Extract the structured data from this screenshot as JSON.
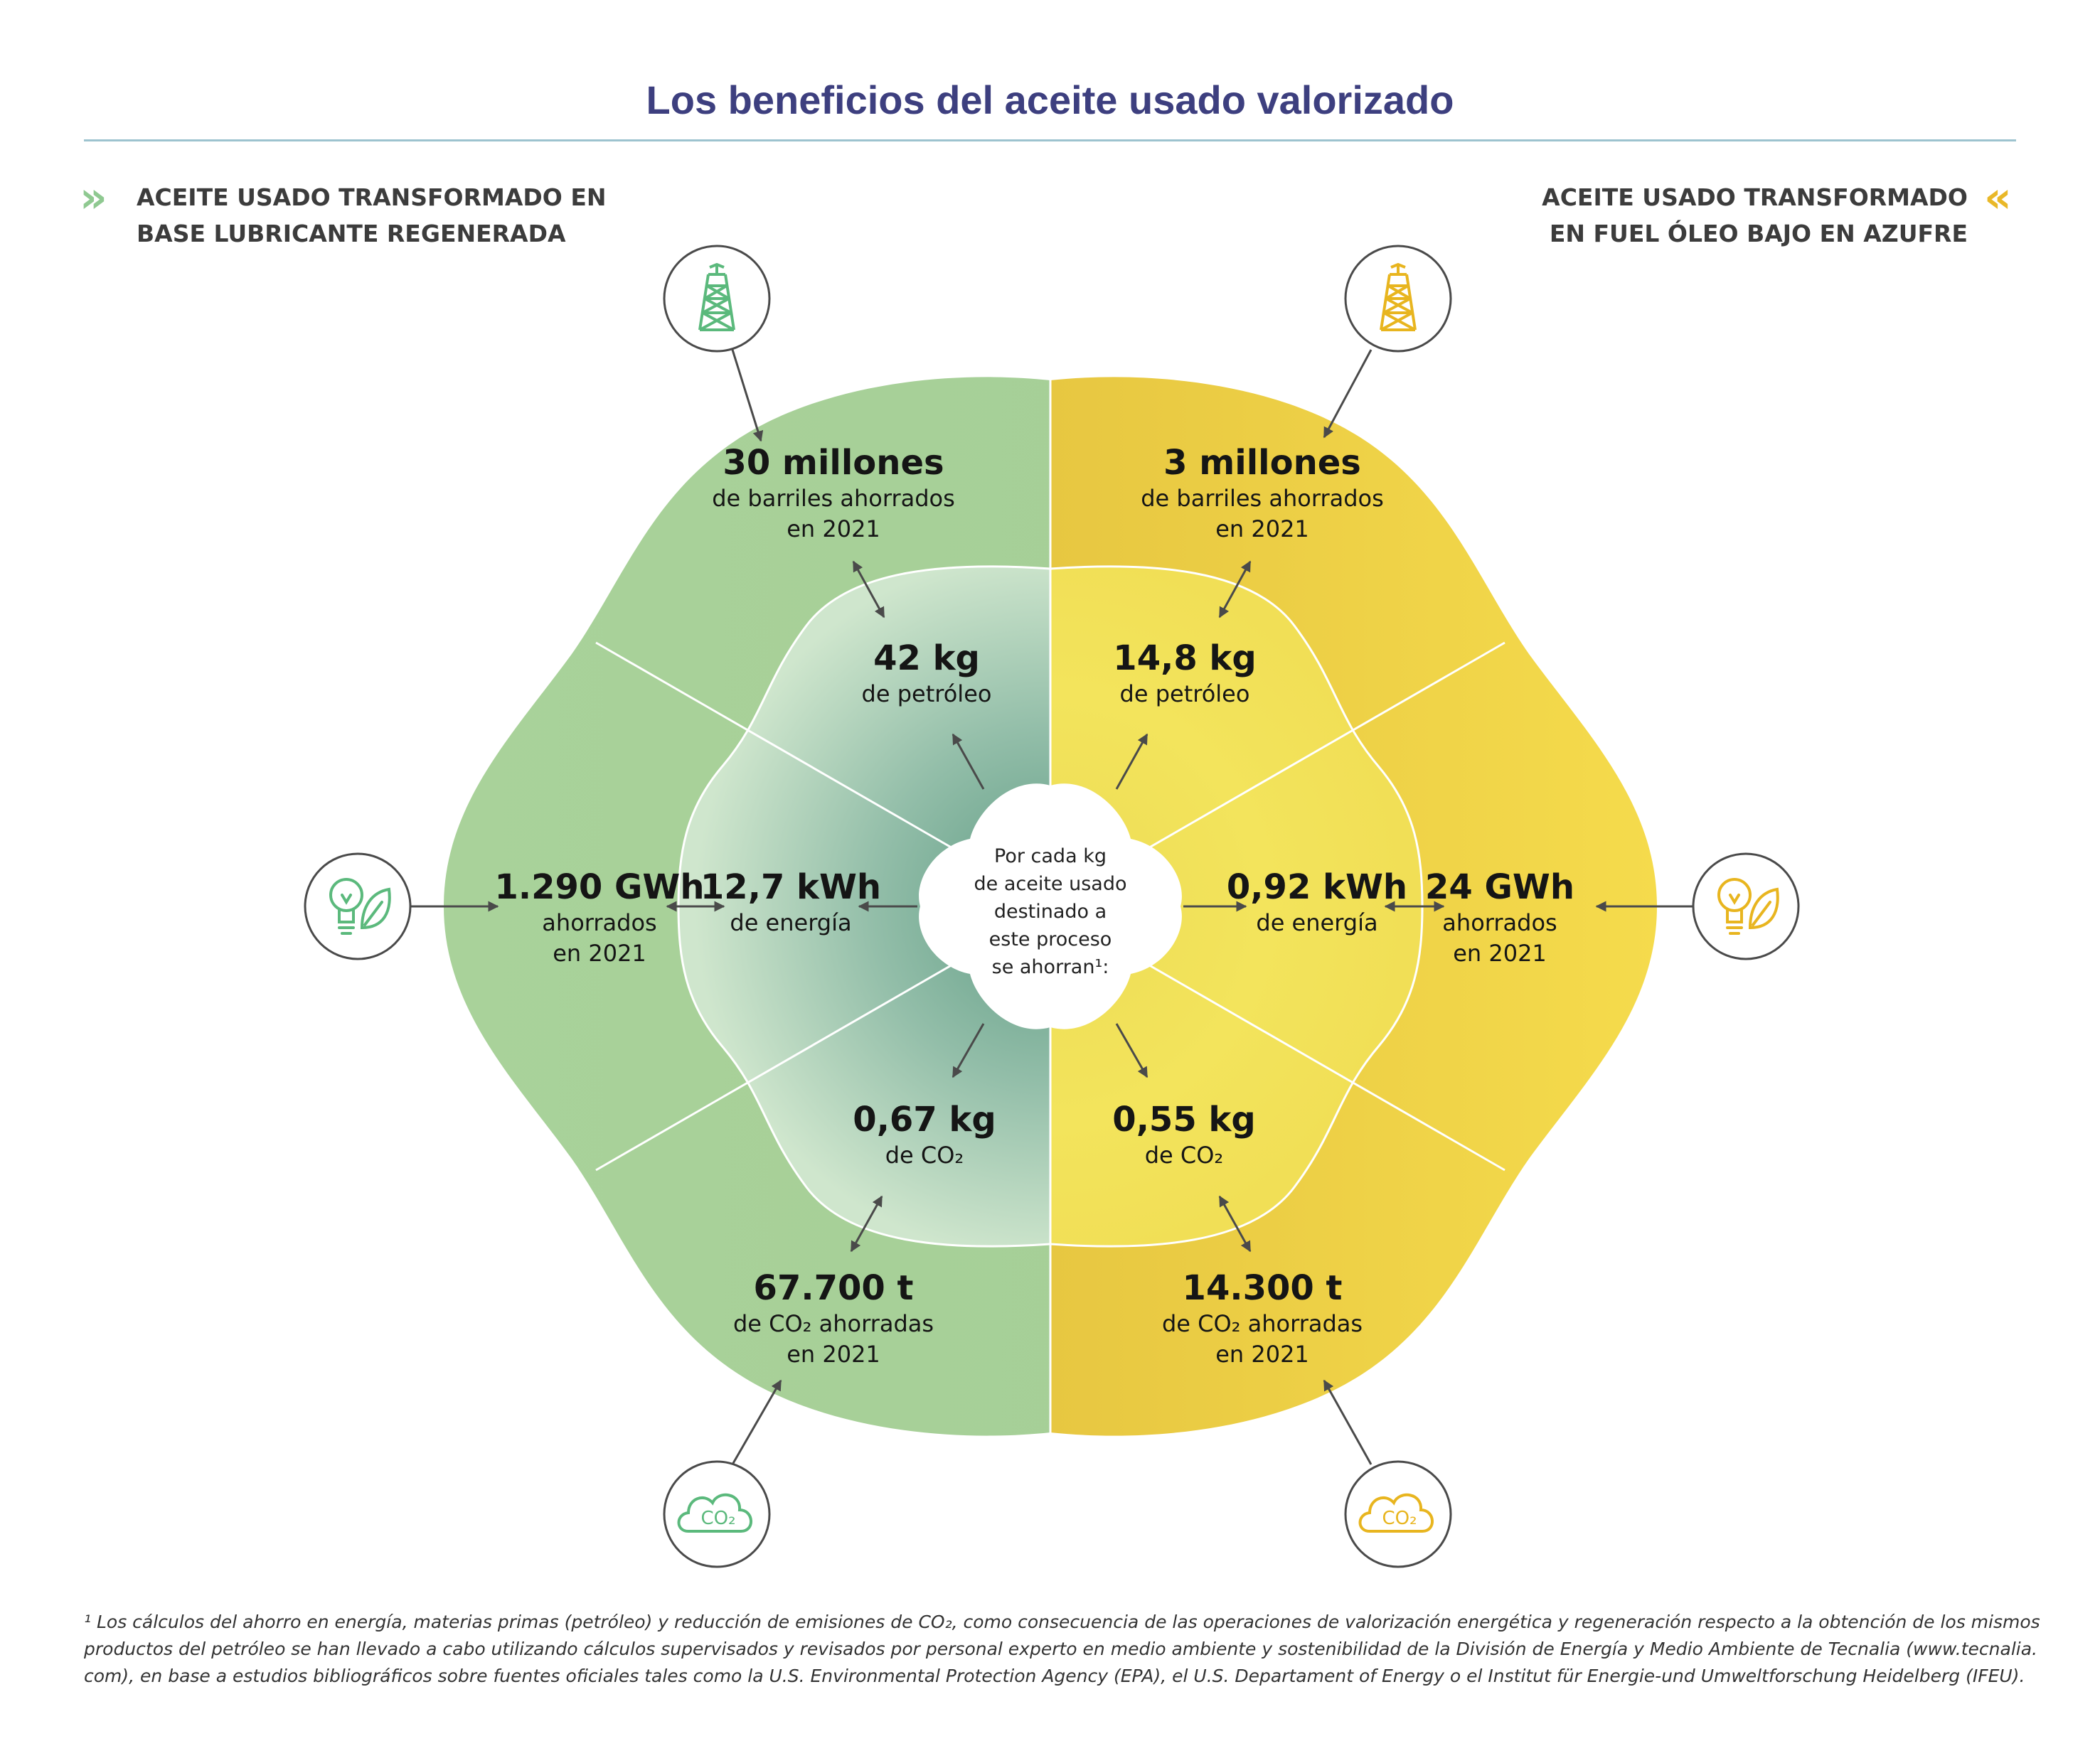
{
  "title": "Los beneficios del aceite usado valorizado",
  "colors": {
    "green": "#9ccb8e",
    "green_dark": "#8fae86",
    "teal": "#7aab95",
    "yellow": "#f3d64a",
    "yellow_dark": "#d5b238",
    "icon_green": "#5bb97c",
    "icon_yellow": "#e8b51f",
    "title": "#3d3f7f"
  },
  "left_heading": [
    "ACEITE USADO TRANSFORMADO EN",
    "BASE LUBRICANTE REGENERADA"
  ],
  "right_heading": [
    "ACEITE USADO TRANSFORMADO",
    "EN FUEL ÓLEO BAJO EN AZUFRE"
  ],
  "center": [
    "Por cada kg",
    "de aceite usado",
    "destinado a",
    "este proceso",
    "se ahorran¹:"
  ],
  "left": {
    "barrels": {
      "value": "30 millones",
      "lines": [
        "de barriles ahorrados",
        "en 2021"
      ]
    },
    "oil": {
      "value": "42 kg",
      "lines": [
        "de petróleo"
      ]
    },
    "energy_total": {
      "value": "1.290 GWh",
      "lines": [
        "ahorrados",
        "en 2021"
      ]
    },
    "energy": {
      "value": "12,7 kWh",
      "lines": [
        "de energía"
      ]
    },
    "co2": {
      "value": "0,67 kg",
      "lines": [
        "de CO₂"
      ]
    },
    "co2_total": {
      "value": "67.700 t",
      "lines": [
        "de CO₂ ahorradas",
        "en 2021"
      ]
    }
  },
  "right": {
    "barrels": {
      "value": "3 millones",
      "lines": [
        "de barriles ahorrados",
        "en 2021"
      ]
    },
    "oil": {
      "value": "14,8 kg",
      "lines": [
        "de petróleo"
      ]
    },
    "energy_total": {
      "value": "24 GWh",
      "lines": [
        "ahorrados",
        "en 2021"
      ]
    },
    "energy": {
      "value": "0,92 kWh",
      "lines": [
        "de energía"
      ]
    },
    "co2": {
      "value": "0,55 kg",
      "lines": [
        "de CO₂"
      ]
    },
    "co2_total": {
      "value": "14.300 t",
      "lines": [
        "de CO₂ ahorradas",
        "en 2021"
      ]
    }
  },
  "icons": {
    "oil": "oil-derrick-icon",
    "energy": "lightbulb-leaf-icon",
    "co2": "co2-cloud-icon",
    "co2_label": "CO₂"
  },
  "footnote": [
    "¹ Los cálculos del ahorro en energía, materias primas (petróleo) y reducción de emisiones de CO₂, como consecuencia de las operaciones de valorización energética y regeneración respecto a la obtención de los mismos",
    "productos del petróleo se han llevado a cabo utilizando cálculos supervisados y revisados por personal experto en medio ambiente y sostenibilidad de la División de Energía y Medio Ambiente de Tecnalia (www.tecnalia.",
    "com), en base a estudios bibliográficos sobre fuentes oficiales tales como la U.S. Environmental Protection Agency (EPA), el U.S. Departament of Energy o el Institut für Energie-und Umweltforschung Heidelberg (IFEU)."
  ]
}
